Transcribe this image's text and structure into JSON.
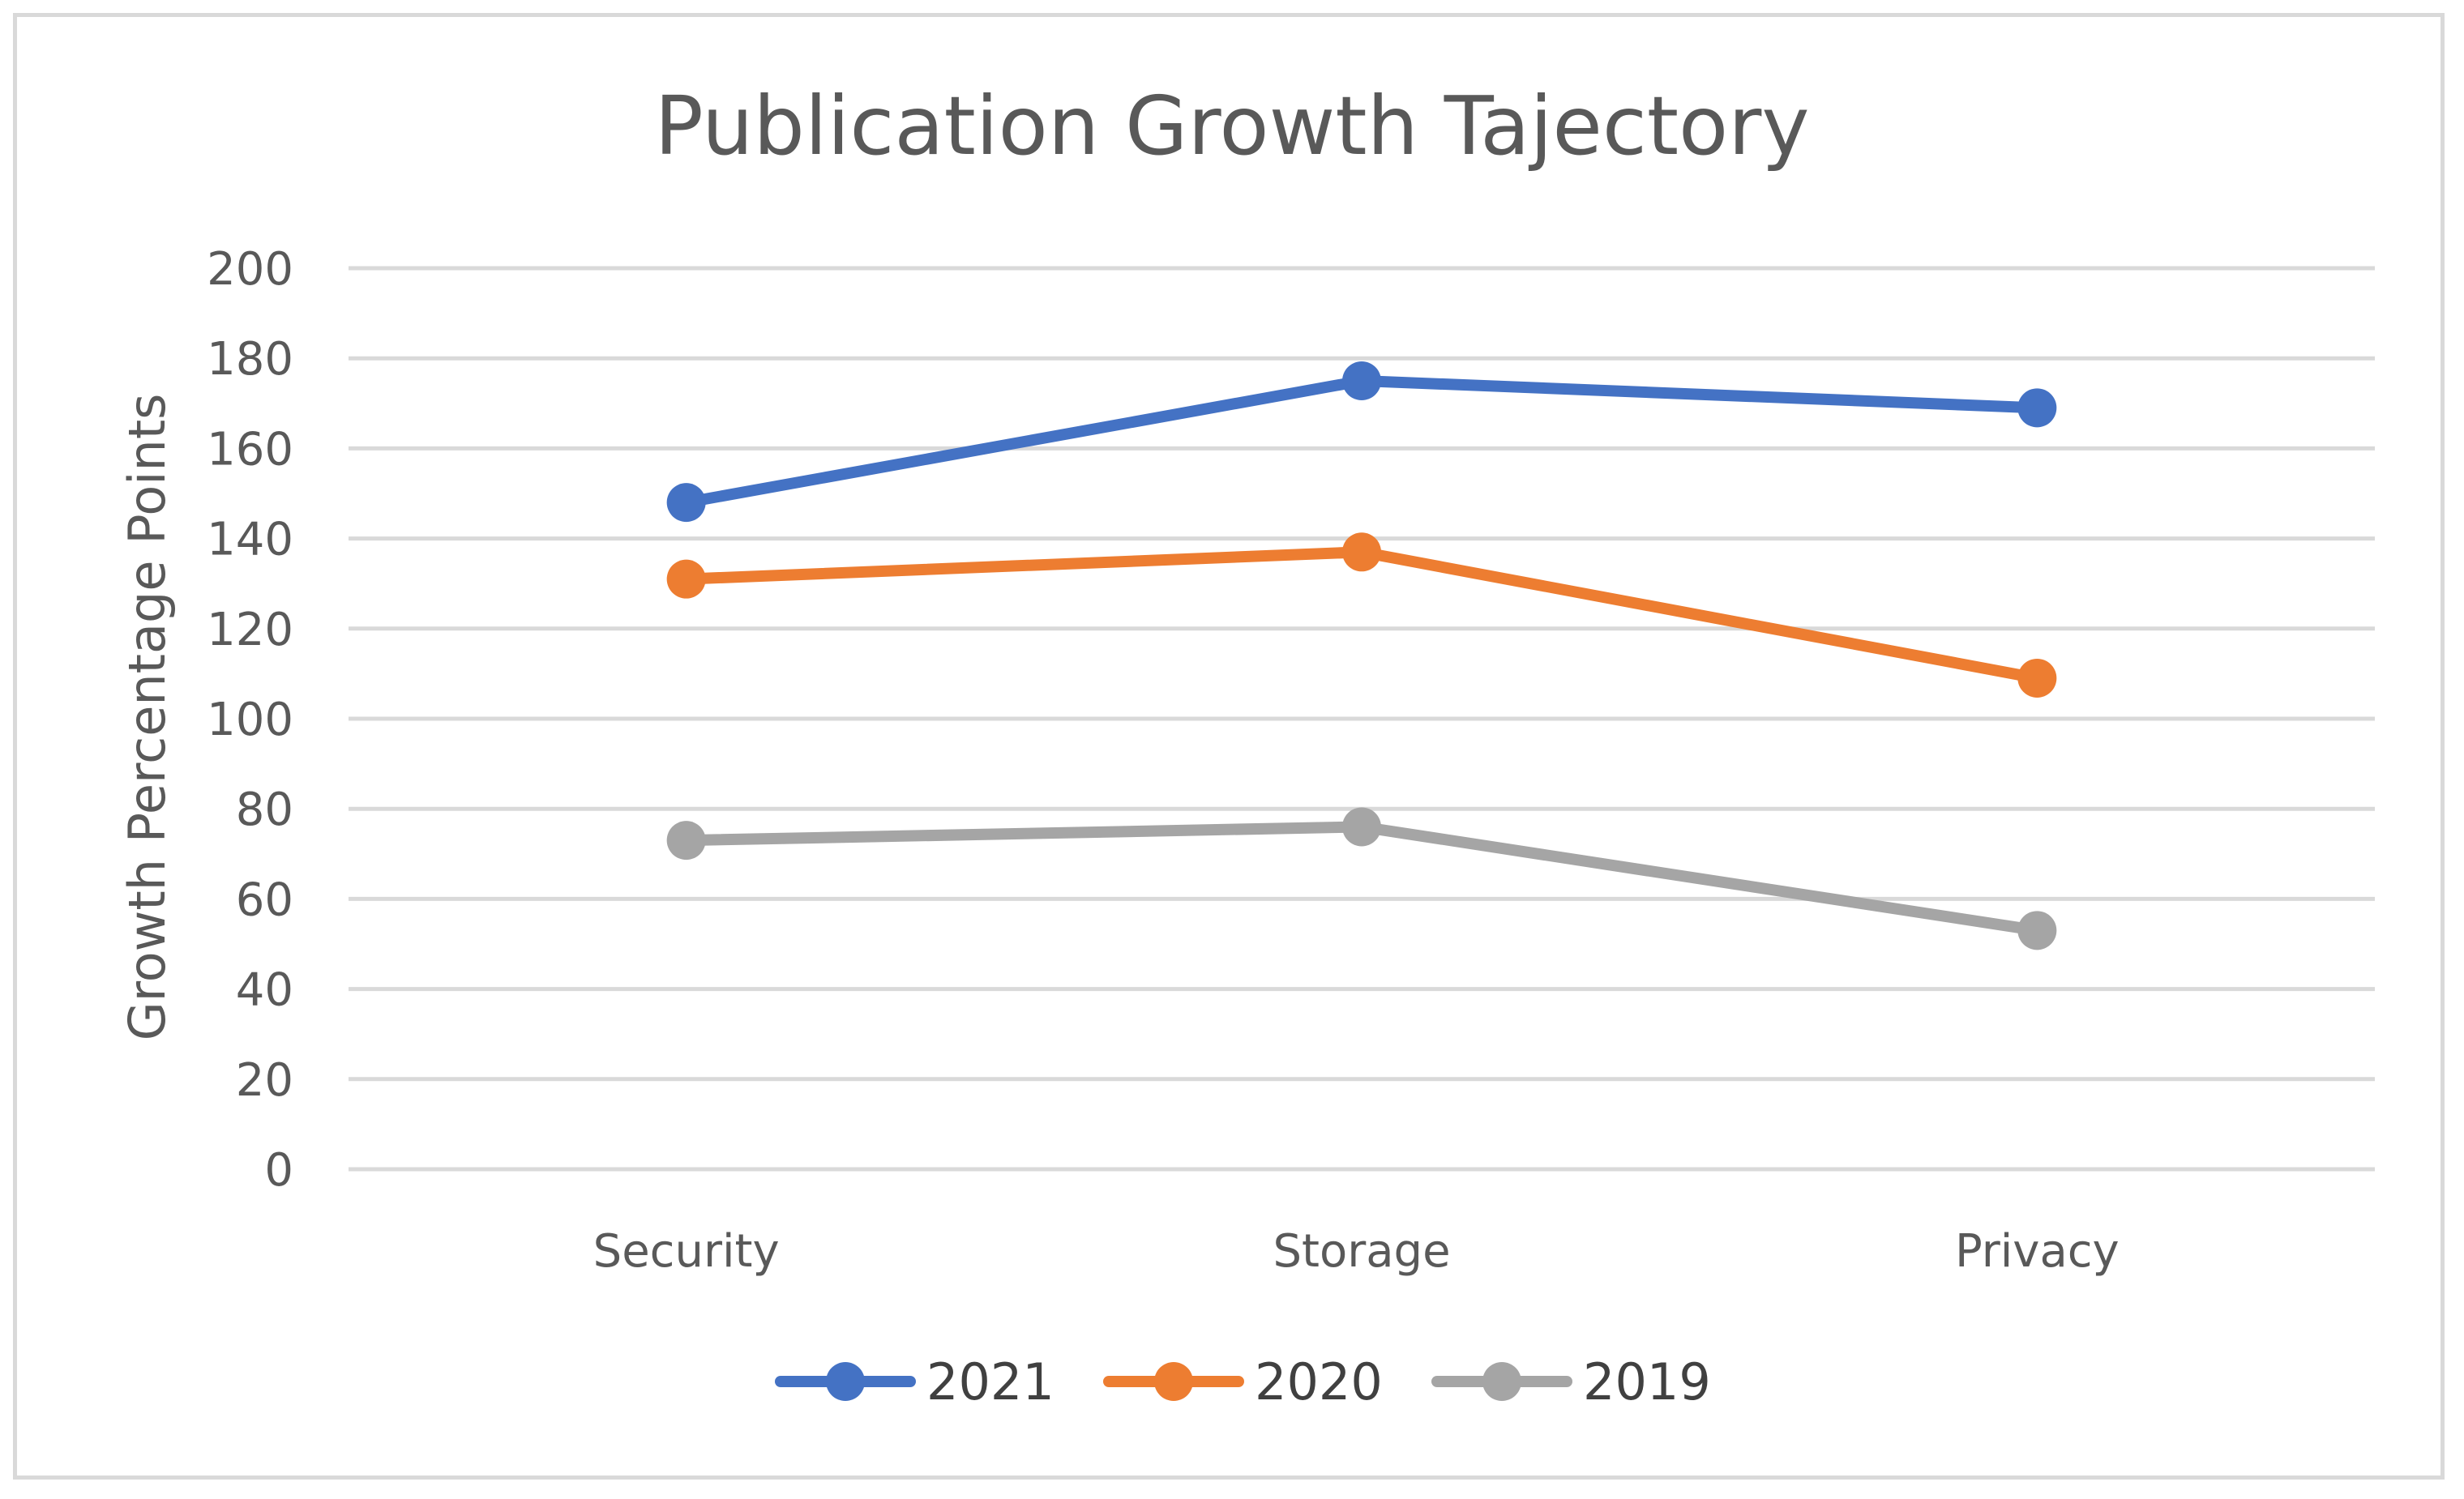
{
  "chart_data": {
    "type": "line",
    "title": "Publication Growth Tajectory",
    "xlabel": "",
    "ylabel": "Growth Percentage Points",
    "categories": [
      "Security",
      "Storage",
      "Privacy"
    ],
    "ylim": [
      0,
      200
    ],
    "yticks": [
      0,
      20,
      40,
      60,
      80,
      100,
      120,
      140,
      160,
      180,
      200
    ],
    "grid": true,
    "legend": "bottom",
    "series": [
      {
        "name": "2021",
        "color": "#4472c4",
        "values": [
          148,
          175,
          169
        ]
      },
      {
        "name": "2020",
        "color": "#ed7d31",
        "values": [
          131,
          137,
          109
        ]
      },
      {
        "name": "2019",
        "color": "#a5a5a5",
        "values": [
          73,
          76,
          53
        ]
      }
    ]
  }
}
